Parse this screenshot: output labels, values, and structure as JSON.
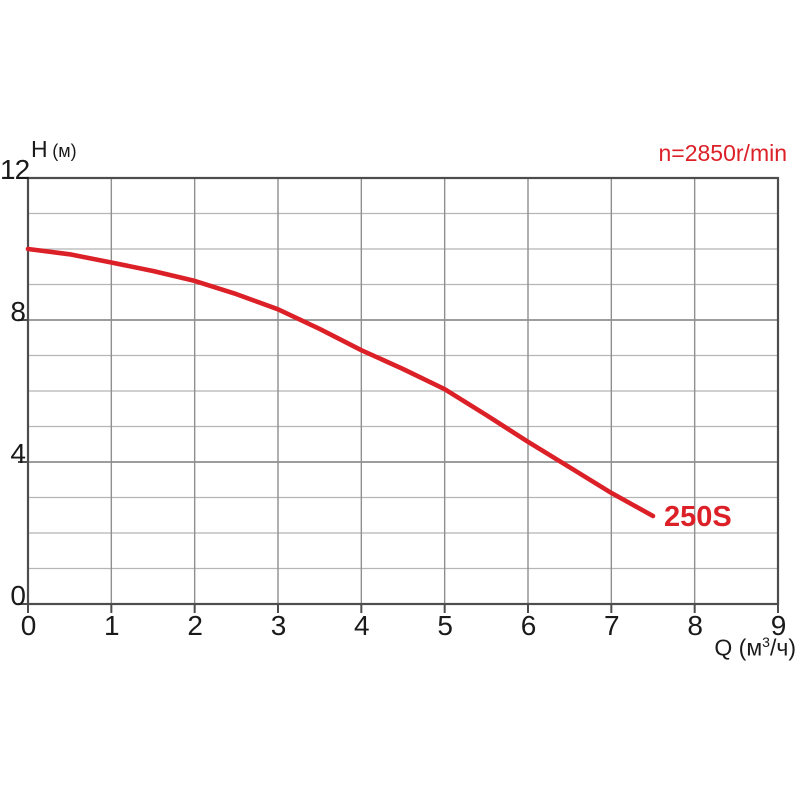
{
  "chart_data": {
    "type": "line",
    "title": "",
    "ylabel_main": "H",
    "ylabel_unit": "(м)",
    "xlabel_pre": "Q (м",
    "xlabel_sup": "3",
    "xlabel_post": "/ч)",
    "annotation": "n=2850r/min",
    "xlim": [
      0,
      9
    ],
    "ylim": [
      0,
      12
    ],
    "x_ticks": [
      0,
      1,
      2,
      3,
      4,
      5,
      6,
      7,
      8,
      9
    ],
    "y_ticks": [
      0,
      4,
      8,
      12
    ],
    "y_minor_step": 1,
    "grid": "on",
    "legend": "inline-label-at-curve-end",
    "colors": {
      "curve": "#dc2027",
      "annotation": "#dc2027",
      "series_label": "#dc2027",
      "border": "#4d4d4d",
      "grid_major": "#7d7d7d",
      "grid_vertical": "#8f8f8f",
      "grid_minor": "#b5b5b5",
      "text": "#1a1a1a",
      "background": "#ffffff"
    },
    "series": [
      {
        "name": "250S",
        "points": [
          [
            0,
            10.0
          ],
          [
            0.5,
            9.85
          ],
          [
            1,
            9.62
          ],
          [
            1.5,
            9.38
          ],
          [
            2,
            9.1
          ],
          [
            2.5,
            8.73
          ],
          [
            3,
            8.3
          ],
          [
            3.5,
            7.75
          ],
          [
            4,
            7.15
          ],
          [
            4.5,
            6.62
          ],
          [
            5,
            6.05
          ],
          [
            5.5,
            5.32
          ],
          [
            6,
            4.57
          ],
          [
            6.5,
            3.85
          ],
          [
            7,
            3.13
          ],
          [
            7.5,
            2.48
          ]
        ]
      }
    ]
  }
}
